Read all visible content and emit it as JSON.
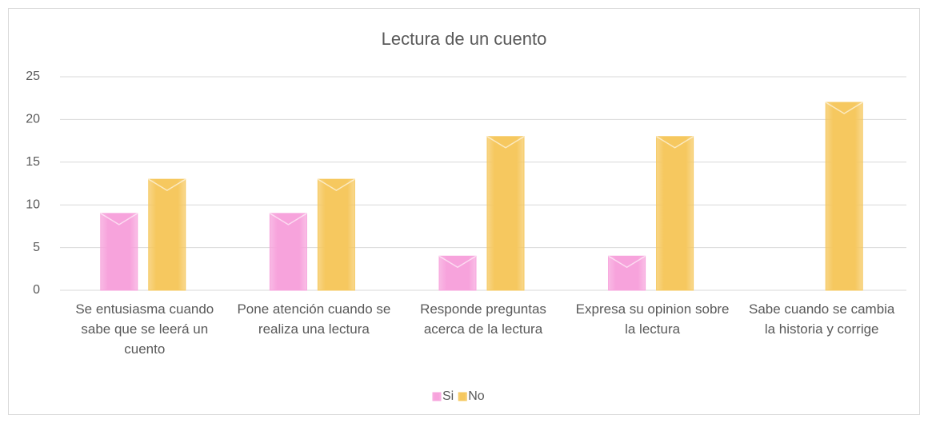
{
  "chart_data": {
    "type": "bar",
    "title": "Lectura de un cuento",
    "categories": [
      "Se entusiasma cuando sabe que se leerá un cuento",
      "Pone atención cuando se realiza una lectura",
      "Responde preguntas acerca de la lectura",
      "Expresa su opinion sobre la lectura",
      "Sabe cuando se cambia la historia y corrige"
    ],
    "series": [
      {
        "name": "Si",
        "color": "#f7a3dc",
        "values": [
          9,
          9,
          4,
          4,
          0
        ]
      },
      {
        "name": "No",
        "color": "#f6c85f",
        "values": [
          13,
          13,
          18,
          18,
          22
        ]
      }
    ],
    "ylim": [
      0,
      25
    ],
    "yticks": [
      0,
      5,
      10,
      15,
      20,
      25
    ],
    "grid": true,
    "legend": "bottom"
  }
}
